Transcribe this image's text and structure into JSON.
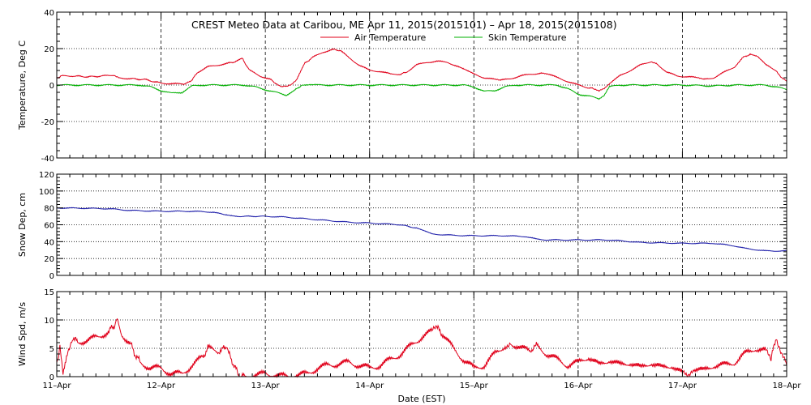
{
  "chart_data": {
    "type": "line",
    "title": "CREST Meteo Data at Caribou, ME   Apr 11, 2015(2015101) – Apr 18, 2015(2015108)",
    "xlabel": "Date (EST)",
    "x_tick_labels": [
      "11–Apr",
      "12–Apr",
      "13–Apr",
      "14–Apr",
      "15–Apr",
      "16–Apr",
      "17–Apr",
      "18–Apr"
    ],
    "x_range_days": [
      0,
      7
    ],
    "panels": [
      {
        "id": "temperature",
        "ylabel": "Temperature, Deg C",
        "ylim": [
          -40,
          40
        ],
        "yticks": [
          -40,
          -20,
          0,
          20,
          40
        ],
        "legend_position": "top-center",
        "series": [
          {
            "name": "Air Temperature",
            "color": "#e0001a",
            "points": [
              [
                0.0,
                4.0
              ],
              [
                0.05,
                5.0
              ],
              [
                0.15,
                5.0
              ],
              [
                0.3,
                4.5
              ],
              [
                0.45,
                5.0
              ],
              [
                0.55,
                5.5
              ],
              [
                0.6,
                4.0
              ],
              [
                0.7,
                3.5
              ],
              [
                0.85,
                3.0
              ],
              [
                1.0,
                1.0
              ],
              [
                1.1,
                0.8
              ],
              [
                1.2,
                0.5
              ],
              [
                1.25,
                1.0
              ],
              [
                1.3,
                3.0
              ],
              [
                1.35,
                7.0
              ],
              [
                1.45,
                10.0
              ],
              [
                1.55,
                11.0
              ],
              [
                1.65,
                12.0
              ],
              [
                1.72,
                13.0
              ],
              [
                1.78,
                14.5
              ],
              [
                1.85,
                8.0
              ],
              [
                1.95,
                5.0
              ],
              [
                2.05,
                3.0
              ],
              [
                2.1,
                1.0
              ],
              [
                2.15,
                -0.5
              ],
              [
                2.2,
                -1.0
              ],
              [
                2.25,
                0.0
              ],
              [
                2.3,
                3.0
              ],
              [
                2.38,
                12.0
              ],
              [
                2.45,
                15.0
              ],
              [
                2.55,
                18.0
              ],
              [
                2.65,
                19.5
              ],
              [
                2.72,
                19.0
              ],
              [
                2.8,
                15.0
              ],
              [
                2.9,
                11.0
              ],
              [
                3.0,
                8.0
              ],
              [
                3.1,
                7.5
              ],
              [
                3.2,
                6.0
              ],
              [
                3.3,
                6.0
              ],
              [
                3.35,
                7.0
              ],
              [
                3.45,
                11.0
              ],
              [
                3.55,
                12.5
              ],
              [
                3.65,
                13.0
              ],
              [
                3.75,
                12.5
              ],
              [
                3.85,
                10.0
              ],
              [
                4.0,
                6.0
              ],
              [
                4.1,
                4.0
              ],
              [
                4.2,
                3.0
              ],
              [
                4.25,
                2.5
              ],
              [
                4.35,
                3.5
              ],
              [
                4.45,
                5.0
              ],
              [
                4.55,
                6.0
              ],
              [
                4.65,
                6.5
              ],
              [
                4.72,
                6.0
              ],
              [
                4.8,
                4.0
              ],
              [
                4.9,
                2.0
              ],
              [
                5.0,
                0.0
              ],
              [
                5.1,
                -1.5
              ],
              [
                5.15,
                -2.0
              ],
              [
                5.2,
                -3.5
              ],
              [
                5.25,
                -2.0
              ],
              [
                5.3,
                1.0
              ],
              [
                5.4,
                5.0
              ],
              [
                5.5,
                8.0
              ],
              [
                5.6,
                11.0
              ],
              [
                5.7,
                13.0
              ],
              [
                5.75,
                12.0
              ],
              [
                5.85,
                7.0
              ],
              [
                5.95,
                5.0
              ],
              [
                6.05,
                4.5
              ],
              [
                6.15,
                4.0
              ],
              [
                6.2,
                3.0
              ],
              [
                6.3,
                4.0
              ],
              [
                6.4,
                7.0
              ],
              [
                6.5,
                10.0
              ],
              [
                6.58,
                15.0
              ],
              [
                6.65,
                17.0
              ],
              [
                6.72,
                16.0
              ],
              [
                6.8,
                11.0
              ],
              [
                6.9,
                8.0
              ],
              [
                6.95,
                4.0
              ],
              [
                7.0,
                2.0
              ]
            ]
          },
          {
            "name": "Skin Temperature",
            "color": "#00b000",
            "points": [
              [
                0.0,
                0.0
              ],
              [
                0.5,
                0.0
              ],
              [
                0.8,
                0.0
              ],
              [
                0.9,
                -1.0
              ],
              [
                1.0,
                -3.0
              ],
              [
                1.1,
                -4.5
              ],
              [
                1.2,
                -4.0
              ],
              [
                1.3,
                -0.5
              ],
              [
                1.4,
                0.0
              ],
              [
                1.8,
                0.0
              ],
              [
                1.9,
                -1.0
              ],
              [
                2.0,
                -2.5
              ],
              [
                2.1,
                -4.0
              ],
              [
                2.2,
                -5.5
              ],
              [
                2.28,
                -3.0
              ],
              [
                2.35,
                0.0
              ],
              [
                2.5,
                0.0
              ],
              [
                3.0,
                0.0
              ],
              [
                3.3,
                0.0
              ],
              [
                3.7,
                0.0
              ],
              [
                3.9,
                0.0
              ],
              [
                4.0,
                -1.0
              ],
              [
                4.1,
                -3.5
              ],
              [
                4.2,
                -3.0
              ],
              [
                4.3,
                -1.0
              ],
              [
                4.4,
                0.0
              ],
              [
                4.8,
                0.0
              ],
              [
                4.9,
                -2.0
              ],
              [
                5.0,
                -5.0
              ],
              [
                5.1,
                -6.0
              ],
              [
                5.2,
                -7.5
              ],
              [
                5.25,
                -6.0
              ],
              [
                5.3,
                -1.0
              ],
              [
                5.4,
                0.0
              ],
              [
                6.0,
                0.0
              ],
              [
                6.3,
                -0.5
              ],
              [
                6.5,
                0.0
              ],
              [
                6.8,
                0.0
              ],
              [
                6.9,
                -1.0
              ],
              [
                7.0,
                -2.5
              ]
            ]
          }
        ]
      },
      {
        "id": "snow_depth",
        "ylabel": "Snow Dep, cm",
        "ylim": [
          0,
          120
        ],
        "yticks": [
          0,
          20,
          40,
          60,
          80,
          100,
          120
        ],
        "series": [
          {
            "name": "",
            "color": "#1a1aa8",
            "points": [
              [
                0.0,
                80.0
              ],
              [
                0.3,
                79.5
              ],
              [
                0.5,
                79.0
              ],
              [
                0.7,
                77.0
              ],
              [
                1.0,
                76.0
              ],
              [
                1.3,
                76.0
              ],
              [
                1.5,
                75.0
              ],
              [
                1.6,
                72.0
              ],
              [
                1.75,
                70.0
              ],
              [
                2.0,
                70.0
              ],
              [
                2.2,
                69.0
              ],
              [
                2.5,
                66.0
              ],
              [
                2.8,
                63.0
              ],
              [
                3.0,
                62.0
              ],
              [
                3.3,
                60.0
              ],
              [
                3.45,
                56.0
              ],
              [
                3.6,
                49.0
              ],
              [
                3.8,
                47.5
              ],
              [
                4.0,
                47.0
              ],
              [
                4.3,
                47.0
              ],
              [
                4.5,
                46.0
              ],
              [
                4.6,
                43.0
              ],
              [
                4.7,
                42.0
              ],
              [
                5.0,
                42.0
              ],
              [
                5.3,
                42.0
              ],
              [
                5.5,
                40.0
              ],
              [
                5.6,
                39.0
              ],
              [
                6.0,
                38.0
              ],
              [
                6.3,
                38.0
              ],
              [
                6.5,
                35.0
              ],
              [
                6.6,
                32.0
              ],
              [
                6.8,
                29.0
              ],
              [
                7.0,
                29.0
              ]
            ]
          }
        ]
      },
      {
        "id": "wind_speed",
        "ylabel": "Wind Spd, m/s",
        "ylim": [
          0,
          15
        ],
        "yticks": [
          0,
          5,
          10,
          15
        ],
        "series": [
          {
            "name": "",
            "color": "#e0001a",
            "points": [
              [
                0.0,
                2.5
              ],
              [
                0.03,
                5.0
              ],
              [
                0.06,
                1.0
              ],
              [
                0.1,
                4.0
              ],
              [
                0.15,
                7.0
              ],
              [
                0.2,
                6.0
              ],
              [
                0.3,
                6.5
              ],
              [
                0.4,
                7.0
              ],
              [
                0.5,
                8.0
              ],
              [
                0.55,
                9.0
              ],
              [
                0.58,
                10.0
              ],
              [
                0.62,
                7.5
              ],
              [
                0.7,
                6.0
              ],
              [
                0.75,
                4.0
              ],
              [
                0.8,
                2.5
              ],
              [
                0.9,
                1.5
              ],
              [
                1.0,
                1.5
              ],
              [
                1.1,
                0.5
              ],
              [
                1.2,
                0.5
              ],
              [
                1.3,
                2.0
              ],
              [
                1.4,
                3.5
              ],
              [
                1.45,
                5.0
              ],
              [
                1.55,
                4.5
              ],
              [
                1.62,
                5.0
              ],
              [
                1.65,
                4.0
              ],
              [
                1.7,
                2.0
              ],
              [
                1.75,
                0.0
              ],
              [
                1.8,
                0.0
              ],
              [
                2.0,
                0.5
              ],
              [
                2.2,
                0.0
              ],
              [
                2.4,
                0.5
              ],
              [
                2.5,
                1.5
              ],
              [
                2.6,
                2.0
              ],
              [
                2.8,
                2.5
              ],
              [
                3.0,
                1.5
              ],
              [
                3.1,
                2.0
              ],
              [
                3.2,
                3.0
              ],
              [
                3.3,
                4.0
              ],
              [
                3.4,
                5.5
              ],
              [
                3.5,
                7.0
              ],
              [
                3.6,
                8.0
              ],
              [
                3.65,
                8.5
              ],
              [
                3.7,
                7.5
              ],
              [
                3.8,
                5.0
              ],
              [
                3.9,
                3.0
              ],
              [
                4.0,
                1.5
              ],
              [
                4.1,
                2.0
              ],
              [
                4.2,
                4.0
              ],
              [
                4.3,
                5.5
              ],
              [
                4.35,
                6.0
              ],
              [
                4.45,
                5.0
              ],
              [
                4.55,
                4.5
              ],
              [
                4.6,
                5.5
              ],
              [
                4.7,
                4.0
              ],
              [
                4.8,
                3.0
              ],
              [
                4.9,
                2.0
              ],
              [
                5.0,
                2.5
              ],
              [
                5.1,
                3.5
              ],
              [
                5.2,
                2.0
              ],
              [
                5.3,
                3.0
              ],
              [
                5.4,
                2.0
              ],
              [
                5.5,
                2.5
              ],
              [
                5.6,
                1.5
              ],
              [
                5.7,
                2.5
              ],
              [
                5.8,
                1.5
              ],
              [
                5.9,
                2.0
              ],
              [
                6.0,
                0.5
              ],
              [
                6.05,
                0.0
              ],
              [
                6.1,
                1.5
              ],
              [
                6.2,
                1.0
              ],
              [
                6.3,
                2.0
              ],
              [
                6.4,
                2.0
              ],
              [
                6.5,
                2.5
              ],
              [
                6.6,
                4.0
              ],
              [
                6.7,
                5.0
              ],
              [
                6.8,
                4.5
              ],
              [
                6.85,
                3.0
              ],
              [
                6.9,
                7.0
              ],
              [
                6.95,
                4.0
              ],
              [
                7.0,
                2.0
              ]
            ]
          }
        ]
      }
    ]
  }
}
